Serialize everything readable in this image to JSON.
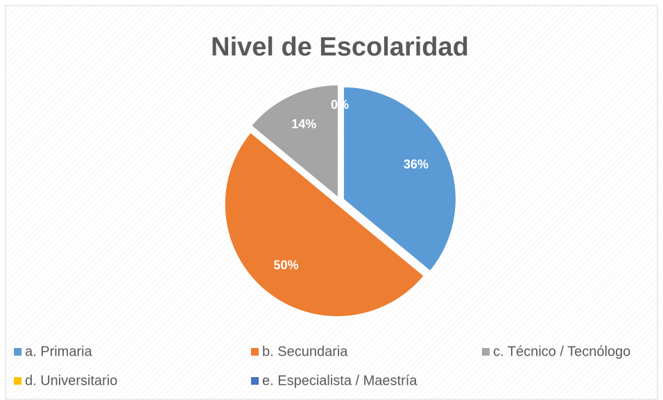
{
  "chart_data": {
    "type": "pie",
    "title": "Nivel de Escolaridad",
    "categories": [
      "a. Primaria",
      "b. Secundaria",
      "c. Técnico / Tecnólogo",
      "d. Universitario",
      "e. Especialista / Maestría"
    ],
    "values": [
      36,
      50,
      14,
      0,
      0
    ],
    "value_labels": [
      "36%",
      "50%",
      "14%",
      "0%",
      null
    ],
    "colors": [
      "#5b9bd5",
      "#ed7d31",
      "#a5a5a5",
      "#ffc000",
      "#4472c4"
    ],
    "legend": "bottom"
  }
}
